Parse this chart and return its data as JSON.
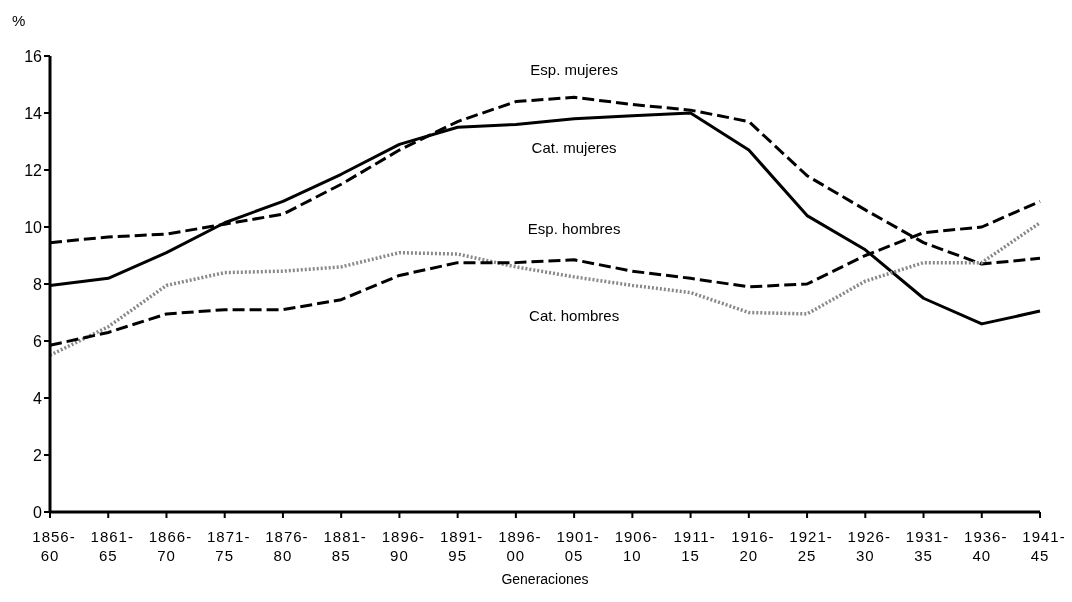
{
  "chart_data": {
    "type": "line",
    "ylabel": "%",
    "xlabel": "Generaciones",
    "categories": [
      "1856-60",
      "1861-65",
      "1866-70",
      "1871-75",
      "1876-80",
      "1881-85",
      "1896-90",
      "1891-95",
      "1896-00",
      "1901-05",
      "1906-10",
      "1911-15",
      "1916-20",
      "1921-25",
      "1926-30",
      "1931-35",
      "1936-40",
      "1941-45"
    ],
    "series": [
      {
        "name": "Cat. mujeres",
        "color": "#000000",
        "line_style": "solid",
        "values": [
          7.95,
          8.2,
          9.1,
          10.15,
          10.9,
          11.85,
          12.9,
          13.5,
          13.6,
          13.8,
          13.9,
          14.0,
          12.7,
          10.4,
          9.2,
          7.5,
          6.6,
          7.05
        ]
      },
      {
        "name": "Esp. mujeres",
        "color": "#000000",
        "line_style": "dashed",
        "values": [
          9.45,
          9.65,
          9.75,
          10.1,
          10.45,
          11.5,
          12.7,
          13.7,
          14.4,
          14.55,
          14.3,
          14.1,
          13.7,
          11.8,
          10.6,
          9.45,
          8.7,
          8.9
        ]
      },
      {
        "name": "Cat. hombres",
        "color": "#888888",
        "line_style": "dotted",
        "values": [
          5.5,
          6.5,
          7.95,
          8.4,
          8.45,
          8.6,
          9.1,
          9.05,
          8.6,
          8.25,
          7.95,
          7.7,
          7.0,
          6.95,
          8.1,
          8.75,
          8.75,
          10.15
        ]
      },
      {
        "name": "Esp. hombres",
        "color": "#000000",
        "line_style": "dashed",
        "values": [
          5.85,
          6.3,
          6.95,
          7.1,
          7.1,
          7.45,
          8.3,
          8.75,
          8.75,
          8.85,
          8.45,
          8.2,
          7.9,
          8.0,
          9.0,
          9.8,
          10.0,
          10.9
        ]
      }
    ],
    "ylim": [
      0,
      16
    ],
    "yticks": [
      0,
      2,
      4,
      6,
      8,
      10,
      12,
      14,
      16
    ],
    "grid": false,
    "legend": false,
    "marker": "none"
  }
}
